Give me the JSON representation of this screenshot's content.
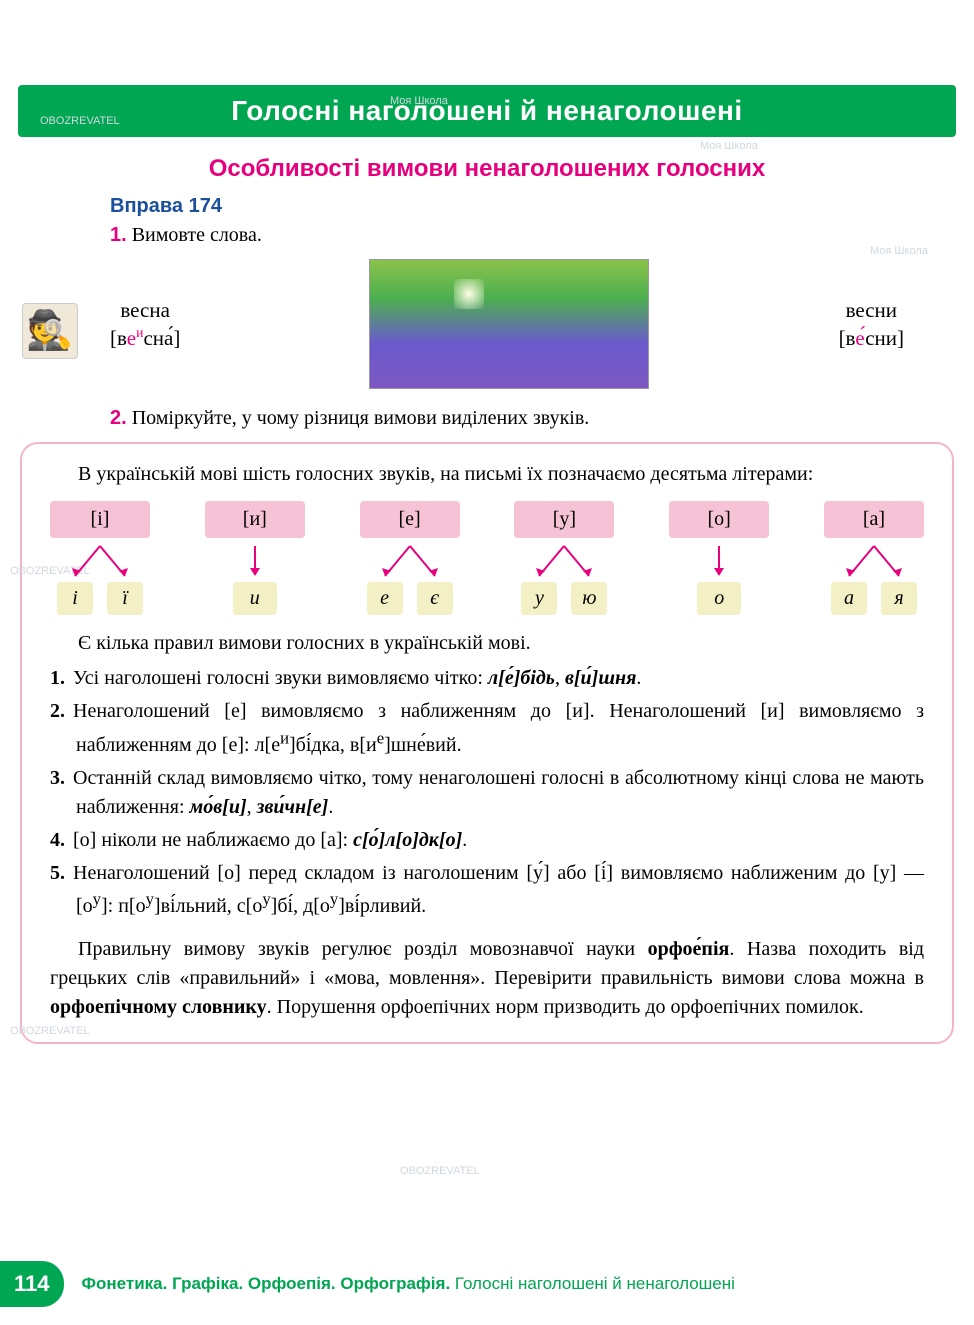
{
  "header": "Голосні наголошені й ненаголошені",
  "subtitle": "Особливості вимови ненаголошених голосних",
  "exercise_label": "Вправа 174",
  "task1_num": "1.",
  "task1_text": "Вимовте слова.",
  "word_left": "весна",
  "transcript_left_open": "[в",
  "transcript_left_e": "е",
  "transcript_left_sup": "и",
  "transcript_left_close": "сна́]",
  "word_right": "весни",
  "transcript_right_open": "[в",
  "transcript_right_e": "е́",
  "transcript_right_close": "сни]",
  "task2_num": "2.",
  "task2_text": "Поміркуйте, у чому різниця вимови виділених звуків.",
  "theory_intro": "В українській мові шість голосних звуків, на письмі їх позначаємо десятьма літерами:",
  "sounds": {
    "s1": "[і]",
    "s2": "[и]",
    "s3": "[е]",
    "s4": "[у]",
    "s5": "[о]",
    "s6": "[а]"
  },
  "letters": {
    "g1a": "і",
    "g1b": "ї",
    "g2": "и",
    "g3a": "е",
    "g3b": "є",
    "g4a": "у",
    "g4b": "ю",
    "g5": "о",
    "g6a": "а",
    "g6b": "я"
  },
  "rules_intro": "Є кілька правил вимови голосних в українській мові.",
  "rule1": "Усі наголошені голосні звуки вимовляємо чітко: л[е́]бідь, в[и́]шня.",
  "rule2": "Ненаголошений [е] вимовляємо з наближенням до [и]. Ненаголошений [и] вимовляємо з наближенням до [е]: л[еи]бі́дка, в[ие]шне́вий.",
  "rule3": "Останній склад вимовляємо чітко, тому ненаголошені голосні в абсолютному кінці слова не мають наближення: мо́в[и], зви́чн[е].",
  "rule4": "[о] ніколи не наближаємо до [а]: с[о́]л[о]дк[о].",
  "rule5": "Ненаголошений [о] перед складом із наголошеним [у́] або [і́] вимовляємо наближеним до [у] — [оу]: п[оу]ві́льний, с[оу]бі́, д[оу]ві́рливий.",
  "final_para": "Правильну вимову звуків регулює розділ мовознавчої науки орфое́пія. Назва походить від грецьких слів «правильний» і «мова, мовлення». Перевірити правильність вимови слова  можна в орфоепічному словнику. Порушення орфоепічних норм призводить до орфоепічних помилок.",
  "page_num": "114",
  "footer_bold": "Фонетика. Графіка. Орфоепія. Орфографія.",
  "footer_rest": " Голосні наголошені й ненаголошені",
  "watermarks": [
    "Моя Школа",
    "OBOZREVATEL"
  ],
  "colors": {
    "brand_green": "#00a652",
    "accent_pink": "#e6007e",
    "heading_blue": "#1b4f9c",
    "sound_bg": "#f6c2d6",
    "letter_bg": "#f3f0c6",
    "box_border": "#f5b5c8"
  }
}
